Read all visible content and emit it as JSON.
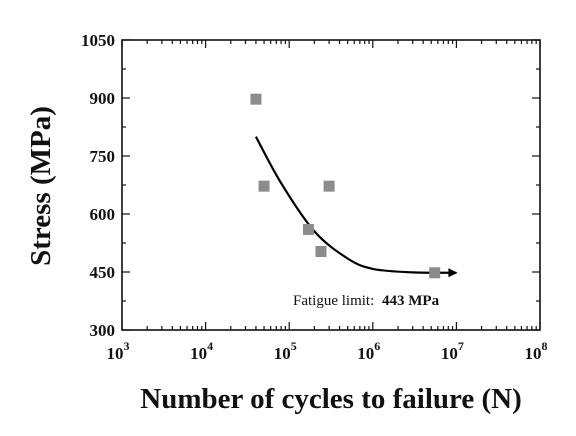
{
  "chart_data": {
    "type": "scatter",
    "xlabel": "Number of cycles to failure (N)",
    "ylabel": "Stress (MPa)",
    "x_scale": "log",
    "xlim": [
      1000,
      100000000
    ],
    "ylim": [
      300,
      1050
    ],
    "x_ticks": [
      {
        "base": "10",
        "exp": "3"
      },
      {
        "base": "10",
        "exp": "4"
      },
      {
        "base": "10",
        "exp": "5"
      },
      {
        "base": "10",
        "exp": "6"
      },
      {
        "base": "10",
        "exp": "7"
      },
      {
        "base": "10",
        "exp": "8"
      }
    ],
    "y_ticks": [
      "300",
      "450",
      "600",
      "750",
      "900",
      "1050"
    ],
    "grid": false,
    "series": [
      {
        "marker": "square",
        "color": "#8c8c8c",
        "points": [
          {
            "x": 40000,
            "y": 897
          },
          {
            "x": 50000,
            "y": 672
          },
          {
            "x": 170000,
            "y": 560
          },
          {
            "x": 240000,
            "y": 503
          },
          {
            "x": 300000,
            "y": 672
          },
          {
            "x": 5500000,
            "y": 448
          }
        ]
      }
    ],
    "trend_curve": {
      "color": "#000000",
      "arrow_end": true,
      "points": [
        {
          "x": 40000,
          "y": 800
        },
        {
          "x": 80000,
          "y": 680
        },
        {
          "x": 200000,
          "y": 555
        },
        {
          "x": 500000,
          "y": 485
        },
        {
          "x": 1000000,
          "y": 458
        },
        {
          "x": 3000000,
          "y": 449
        },
        {
          "x": 10000000,
          "y": 448
        }
      ]
    },
    "annotation": {
      "prefix": "Fatigue limit:",
      "value": "443 MPa"
    }
  }
}
